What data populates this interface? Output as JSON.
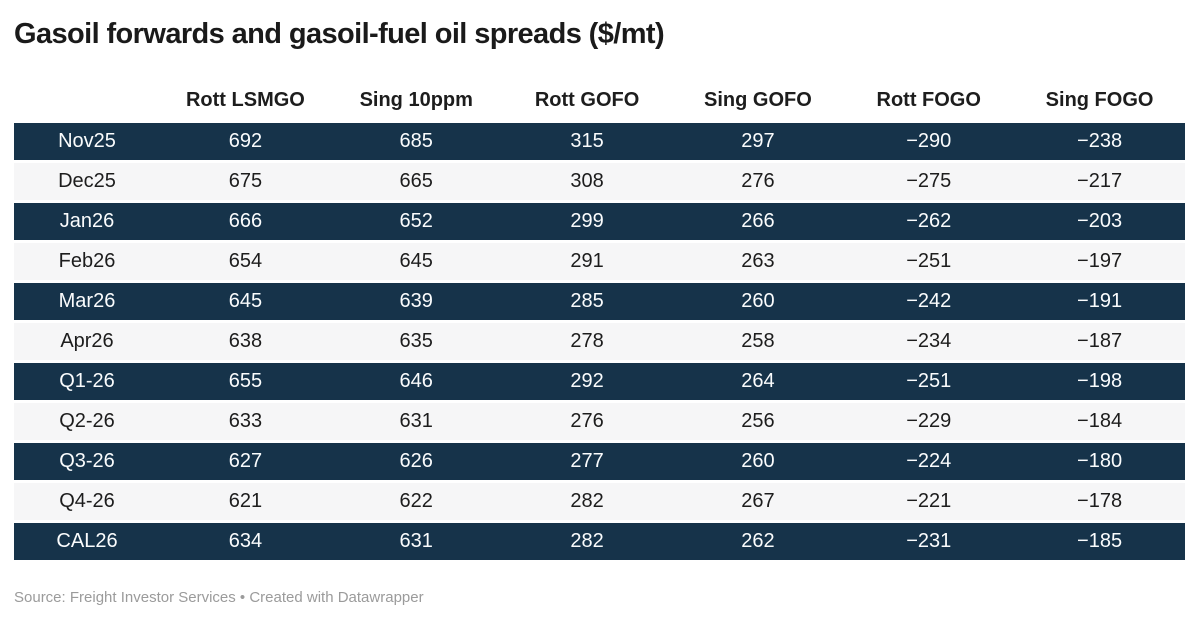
{
  "title": "Gasoil forwards and gasoil-fuel oil spreads ($/mt)",
  "footer": {
    "text": "Source: Freight Investor Services • Created with Datawrapper"
  },
  "colors": {
    "row_dark": "#16334a",
    "row_light": "#f6f6f7",
    "text_on_dark": "#fafcfd",
    "text_on_light": "#1d1d1d",
    "header_text": "#1d1d1d",
    "footer_text": "#9b9b9b",
    "title_text": "#1a1a1a"
  },
  "chart_data": {
    "type": "table",
    "title": "Gasoil forwards and gasoil-fuel oil spreads ($/mt)",
    "columns": [
      "",
      "Rott LSMGO",
      "Sing 10ppm",
      "Rott GOFO",
      "Sing GOFO",
      "Rott FOGO",
      "Sing FOGO"
    ],
    "rows": [
      {
        "period": "Nov25",
        "values": [
          692,
          685,
          315,
          297,
          -290,
          -238
        ]
      },
      {
        "period": "Dec25",
        "values": [
          675,
          665,
          308,
          276,
          -275,
          -217
        ]
      },
      {
        "period": "Jan26",
        "values": [
          666,
          652,
          299,
          266,
          -262,
          -203
        ]
      },
      {
        "period": "Feb26",
        "values": [
          654,
          645,
          291,
          263,
          -251,
          -197
        ]
      },
      {
        "period": "Mar26",
        "values": [
          645,
          639,
          285,
          260,
          -242,
          -191
        ]
      },
      {
        "period": "Apr26",
        "values": [
          638,
          635,
          278,
          258,
          -234,
          -187
        ]
      },
      {
        "period": "Q1-26",
        "values": [
          655,
          646,
          292,
          264,
          -251,
          -198
        ]
      },
      {
        "period": "Q2-26",
        "values": [
          633,
          631,
          276,
          256,
          -229,
          -184
        ]
      },
      {
        "period": "Q3-26",
        "values": [
          627,
          626,
          277,
          260,
          -224,
          -180
        ]
      },
      {
        "period": "Q4-26",
        "values": [
          621,
          622,
          282,
          267,
          -221,
          -178
        ]
      },
      {
        "period": "CAL26",
        "values": [
          634,
          631,
          282,
          262,
          -231,
          -185
        ]
      }
    ],
    "layout": {
      "zebra_striping": true,
      "first_row_style": "dark",
      "value_alignment": "center"
    },
    "source": "Freight Investor Services",
    "attribution": "Created with Datawrapper"
  }
}
